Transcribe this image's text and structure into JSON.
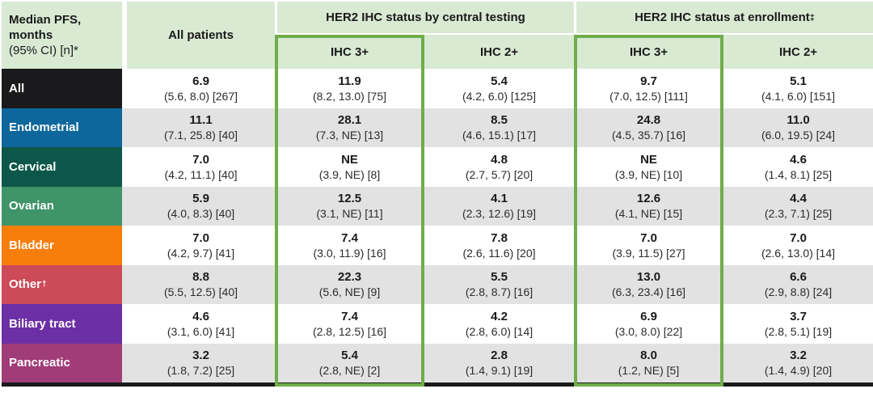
{
  "colors": {
    "header_bg": "#d9ead3",
    "box_border": "#6fad4a",
    "row_alt": "#e2e2e2",
    "bottom_bar": "#1a1a1a"
  },
  "chart_data": {
    "type": "table",
    "corner": {
      "line1": "Median PFS,",
      "line2": "months",
      "line3": "(95% CI) [n]*"
    },
    "col_groups": {
      "all_patients": "All patients",
      "central": "HER2 IHC status by central testing",
      "enrollment": "HER2 IHC status at enrollment",
      "enrollment_marker": "‡"
    },
    "sub_headers": [
      "IHC 3+",
      "IHC 2+",
      "IHC 3+",
      "IHC 2+"
    ],
    "columns": [
      "All patients",
      "Central IHC 3+",
      "Central IHC 2+",
      "Enrollment IHC 3+",
      "Enrollment IHC 2+"
    ],
    "rows": [
      {
        "label": "All",
        "marker": "",
        "color": "#1a1a1c",
        "cells": [
          {
            "value": "6.9",
            "ci": "(5.6, 8.0) [267]"
          },
          {
            "value": "11.9",
            "ci": "(8.2, 13.0) [75]"
          },
          {
            "value": "5.4",
            "ci": "(4.2, 6.0) [125]"
          },
          {
            "value": "9.7",
            "ci": "(7.0, 12.5) [111]"
          },
          {
            "value": "5.1",
            "ci": "(4.1, 6.0) [151]"
          }
        ]
      },
      {
        "label": "Endometrial",
        "marker": "",
        "color": "#0d679c",
        "cells": [
          {
            "value": "11.1",
            "ci": "(7.1, 25.8) [40]"
          },
          {
            "value": "28.1",
            "ci": "(7.3, NE) [13]"
          },
          {
            "value": "8.5",
            "ci": "(4.6, 15.1) [17]"
          },
          {
            "value": "24.8",
            "ci": "(4.5, 35.7) [16]"
          },
          {
            "value": "11.0",
            "ci": "(6.0, 19.5) [24]"
          }
        ]
      },
      {
        "label": "Cervical",
        "marker": "",
        "color": "#0d574a",
        "cells": [
          {
            "value": "7.0",
            "ci": "(4.2, 11.1) [40]"
          },
          {
            "value": "NE",
            "ci": "(3.9, NE) [8]"
          },
          {
            "value": "4.8",
            "ci": "(2.7, 5.7) [20]"
          },
          {
            "value": "NE",
            "ci": "(3.9, NE) [10]"
          },
          {
            "value": "4.6",
            "ci": "(1.4, 8.1) [25]"
          }
        ]
      },
      {
        "label": "Ovarian",
        "marker": "",
        "color": "#3f9468",
        "cells": [
          {
            "value": "5.9",
            "ci": "(4.0, 8.3) [40]"
          },
          {
            "value": "12.5",
            "ci": "(3.1, NE) [11]"
          },
          {
            "value": "4.1",
            "ci": "(2.3, 12.6) [19]"
          },
          {
            "value": "12.6",
            "ci": "(4.1, NE) [15]"
          },
          {
            "value": "4.4",
            "ci": "(2.3, 7.1) [25]"
          }
        ]
      },
      {
        "label": "Bladder",
        "marker": "",
        "color": "#f87e0c",
        "cells": [
          {
            "value": "7.0",
            "ci": "(4.2, 9.7) [41]"
          },
          {
            "value": "7.4",
            "ci": "(3.0, 11.9) [16]"
          },
          {
            "value": "7.8",
            "ci": "(2.6, 11.6) [20]"
          },
          {
            "value": "7.0",
            "ci": "(3.9, 11.5) [27]"
          },
          {
            "value": "7.0",
            "ci": "(2.6, 13.0) [14]"
          }
        ]
      },
      {
        "label": "Other",
        "marker": "†",
        "color": "#cd4a58",
        "cells": [
          {
            "value": "8.8",
            "ci": "(5.5, 12.5) [40]"
          },
          {
            "value": "22.3",
            "ci": "(5.6, NE) [9]"
          },
          {
            "value": "5.5",
            "ci": "(2.8, 8.7) [16]"
          },
          {
            "value": "13.0",
            "ci": "(6.3, 23.4) [16]"
          },
          {
            "value": "6.6",
            "ci": "(2.9, 8.8) [24]"
          }
        ]
      },
      {
        "label": "Biliary tract",
        "marker": "",
        "color": "#6c2fa5",
        "cells": [
          {
            "value": "4.6",
            "ci": "(3.1, 6.0) [41]"
          },
          {
            "value": "7.4",
            "ci": "(2.8, 12.5) [16]"
          },
          {
            "value": "4.2",
            "ci": "(2.8, 6.0) [14]"
          },
          {
            "value": "6.9",
            "ci": "(3.0, 8.0) [22]"
          },
          {
            "value": "3.7",
            "ci": "(2.8, 5.1) [19]"
          }
        ]
      },
      {
        "label": "Pancreatic",
        "marker": "",
        "color": "#a03c78",
        "cells": [
          {
            "value": "3.2",
            "ci": "(1.8, 7.2) [25]"
          },
          {
            "value": "5.4",
            "ci": "(2.8, NE) [2]"
          },
          {
            "value": "2.8",
            "ci": "(1.4, 9.1) [19]"
          },
          {
            "value": "8.0",
            "ci": "(1.2, NE) [5]"
          },
          {
            "value": "3.2",
            "ci": "(1.4, 4.9) [20]"
          }
        ]
      }
    ]
  }
}
